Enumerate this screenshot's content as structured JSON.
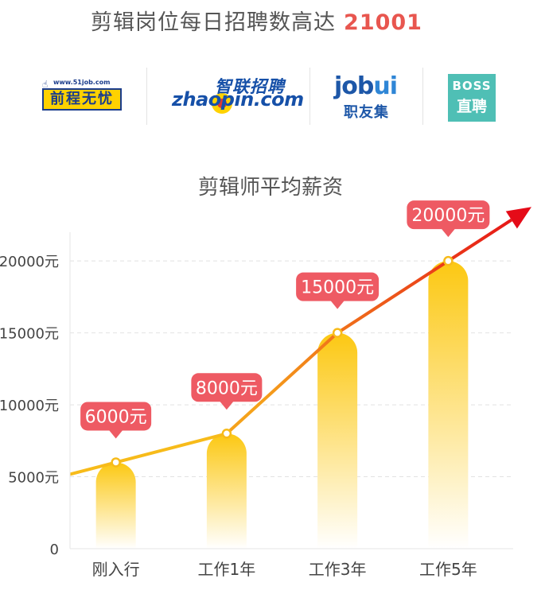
{
  "headline": {
    "text": "剪辑岗位每日招聘数高达",
    "count": "21001"
  },
  "logos": {
    "job51": {
      "url": "www.51job.com",
      "name": "前程无忧"
    },
    "zhaopin": {
      "cn": "智联招聘",
      "en": "zhaopin.com"
    },
    "jobui": {
      "en_main": "job",
      "en_accent": "ui",
      "cn": "职友集"
    },
    "boss": {
      "en": "BOSS",
      "cn": "直聘"
    }
  },
  "colors": {
    "bar_top": "#fcc812",
    "bar_bottom": "#ffffff",
    "line": "#f7bb1a",
    "arrow_start": "#f5a21b",
    "arrow_end": "#e50b18",
    "label_bg": "#ee5a63",
    "label_text": "#ffffff",
    "axis_text": "#444444",
    "grid": "#e2e2e2"
  },
  "chart_data": {
    "type": "bar",
    "title": "剪辑师平均薪资",
    "categories": [
      "刚入行",
      "工作1年",
      "工作3年",
      "工作5年"
    ],
    "series": [
      {
        "values": [
          6000,
          8000,
          15000,
          20000
        ],
        "data_labels": [
          "6000元",
          "8000元",
          "15000元",
          "20000元"
        ]
      }
    ],
    "trend_line": "connects bar tops, arrow continues upward past last bar",
    "ylim": [
      0,
      22000
    ],
    "yticks": [
      0,
      5000,
      10000,
      15000,
      20000
    ],
    "ytick_labels": [
      "0",
      "5000元",
      "10000元",
      "15000元",
      "20000元"
    ],
    "grid": true,
    "legend": "none"
  }
}
